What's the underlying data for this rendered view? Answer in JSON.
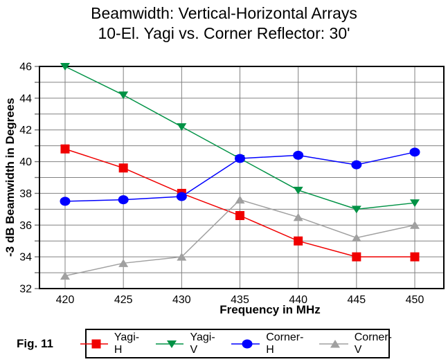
{
  "fig_label": "Fig. 11",
  "chart_data": {
    "type": "line",
    "title": "Beamwidth: Vertical-Horizontal Arrays",
    "subtitle": "10-El. Yagi vs. Corner Reflector:  30'",
    "xlabel": "Frequency in MHz",
    "ylabel": "-3 dB Beamwidth in Degrees",
    "x": [
      420,
      425,
      430,
      435,
      440,
      445,
      450
    ],
    "ylim": [
      32,
      46
    ],
    "ytick_label_step": 2,
    "ytick_minor_step": 1,
    "grid": true,
    "legend_position": "bottom",
    "colors": {
      "grid": "#808080",
      "axis": "#000000",
      "yagi_h": "#f00000",
      "yagi_v": "#009245",
      "corner_h": "#0000ff",
      "corner_v": "#a0a0a0"
    },
    "series": [
      {
        "name": "Yagi-H",
        "marker": "square",
        "color": "#f00000",
        "values": [
          40.8,
          39.6,
          38.0,
          36.6,
          35.0,
          34.0,
          34.0
        ]
      },
      {
        "name": "Yagi-V",
        "marker": "triangle-down",
        "color": "#009245",
        "values": [
          46.0,
          44.2,
          42.2,
          40.2,
          38.2,
          37.0,
          37.4
        ]
      },
      {
        "name": "Corner-H",
        "marker": "circle",
        "color": "#0000ff",
        "values": [
          37.5,
          37.6,
          37.8,
          40.2,
          40.4,
          39.8,
          40.6
        ]
      },
      {
        "name": "Corner-V",
        "marker": "triangle-up",
        "color": "#a0a0a0",
        "values": [
          32.8,
          33.6,
          34.0,
          37.6,
          36.5,
          35.2,
          36.0
        ]
      }
    ]
  }
}
